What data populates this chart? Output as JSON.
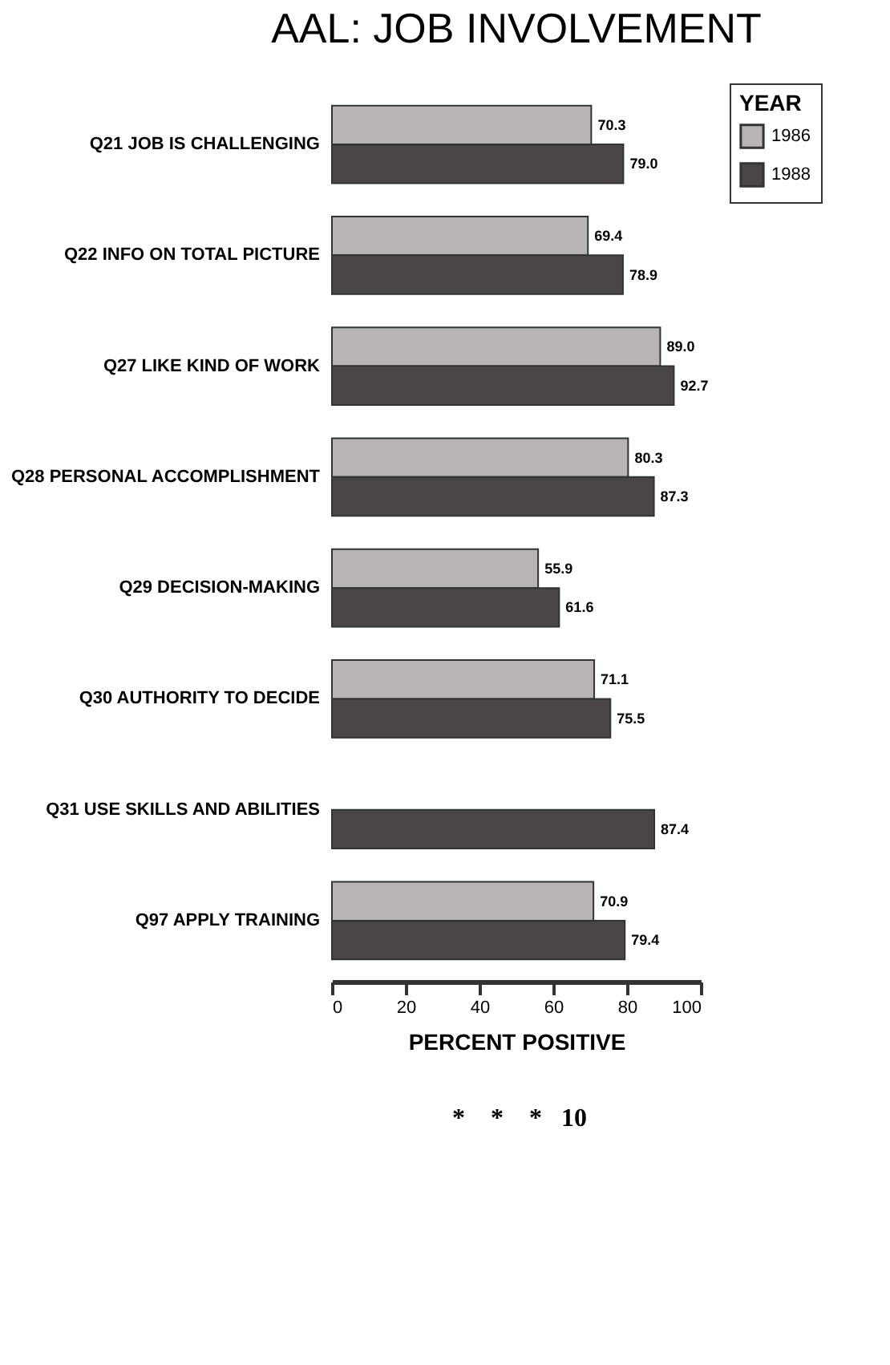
{
  "chart_data": {
    "type": "bar",
    "orientation": "horizontal",
    "title": "AAL: JOB INVOLVEMENT",
    "xlabel": "PERCENT POSITIVE",
    "legend_title": "YEAR",
    "categories": [
      "Q21 JOB IS CHALLENGING",
      "Q22 INFO ON TOTAL PICTURE",
      "Q27 LIKE KIND OF WORK",
      "Q28 PERSONAL ACCOMPLISHMENT",
      "Q29 DECISION-MAKING",
      "Q30 AUTHORITY TO DECIDE",
      "Q31 USE SKILLS AND ABILITIES",
      "Q97 APPLY TRAINING"
    ],
    "series": [
      {
        "name": "1986",
        "color": "#b8b4b4",
        "values": [
          70.3,
          69.4,
          89.0,
          80.3,
          55.9,
          71.1,
          null,
          70.9
        ],
        "value_labels": [
          "70.3",
          "69.4",
          "89.0",
          "80.3",
          "55.9",
          "71.1",
          null,
          "70.9"
        ]
      },
      {
        "name": "1988",
        "color": "#4a4646",
        "values": [
          79.0,
          78.9,
          92.7,
          87.3,
          61.6,
          75.5,
          87.4,
          79.4
        ],
        "value_labels": [
          "79.0",
          "78.9",
          "92.7",
          "87.3",
          "61.6",
          "75.5",
          "87.4",
          "79.4"
        ]
      }
    ],
    "xlim": [
      0,
      100
    ],
    "xticks": [
      0,
      20,
      40,
      60,
      80,
      100
    ],
    "grid": false,
    "legend": "top right",
    "annotations": [
      "*",
      "*",
      "*",
      "10"
    ]
  }
}
